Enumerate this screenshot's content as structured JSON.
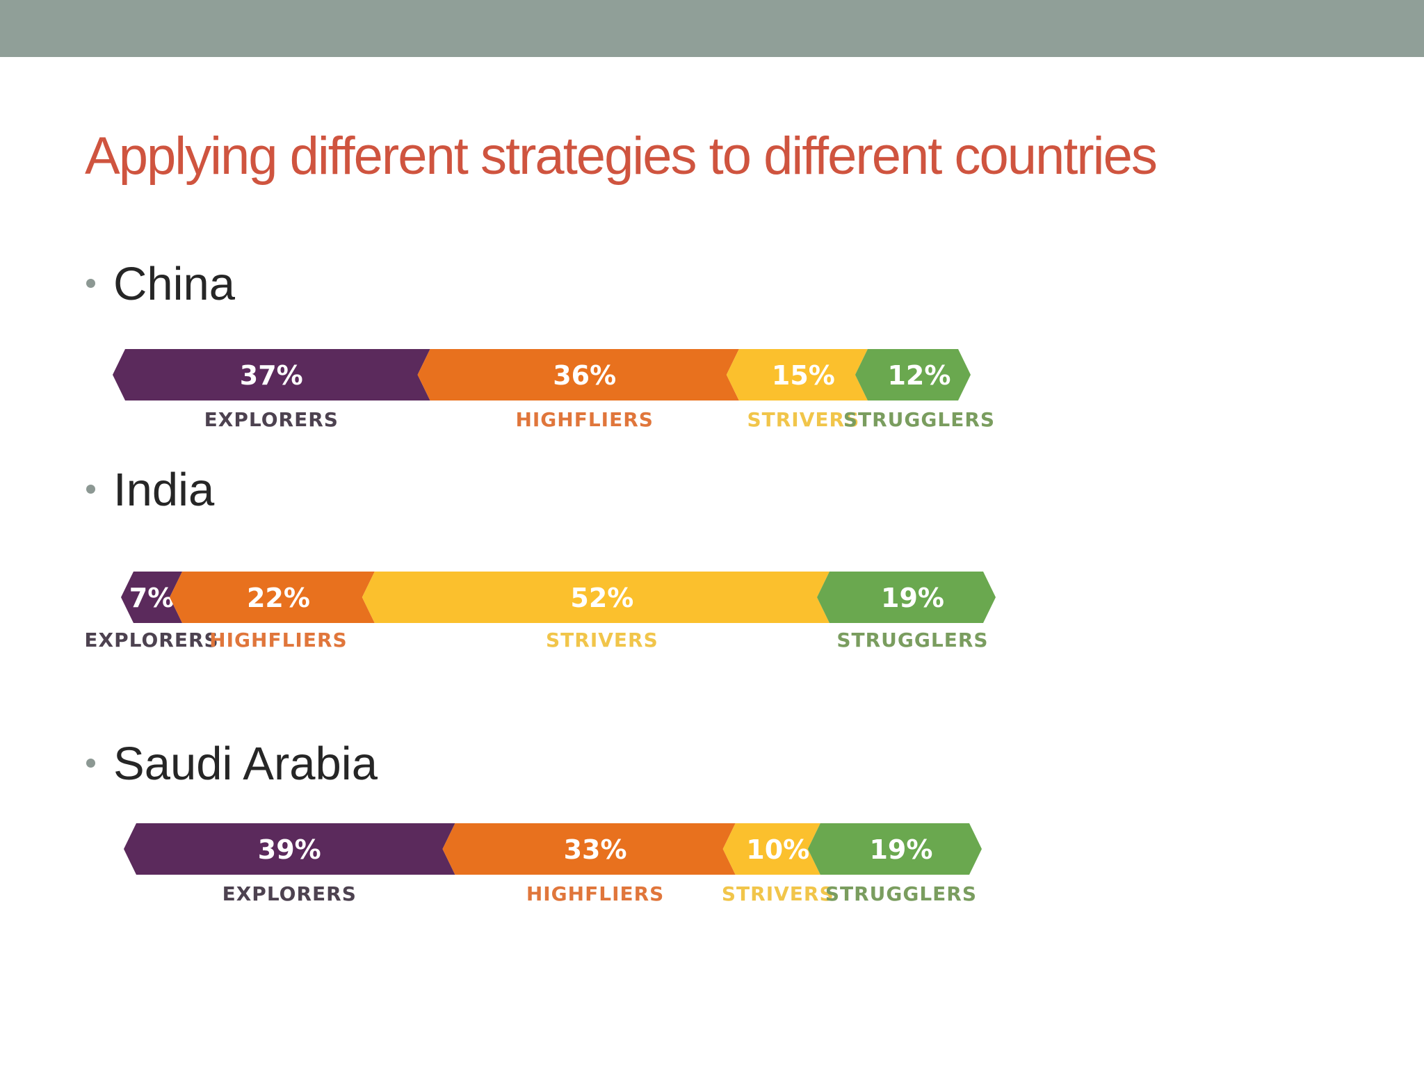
{
  "slide": {
    "title": "Applying different strategies to different countries"
  },
  "chart_data": [
    {
      "type": "bar",
      "orientation": "horizontal-stacked",
      "title": "China",
      "unit": "%",
      "categories": [
        "EXPLORERS",
        "HIGHFLIERS",
        "STRIVERS",
        "STRUGGLERS"
      ],
      "values": [
        37,
        36,
        15,
        12
      ],
      "labels": [
        "37%",
        "36%",
        "15%",
        "12%"
      ],
      "colors": [
        "#5b2a5c",
        "#e8711e",
        "#fbc02d",
        "#6aa84f"
      ],
      "label_colors": [
        "#4d4250",
        "#e0763b",
        "#f1c54a",
        "#7a9d5f"
      ]
    },
    {
      "type": "bar",
      "orientation": "horizontal-stacked",
      "title": "India",
      "unit": "%",
      "categories": [
        "EXPLORERS",
        "HIGHFLIERS",
        "STRIVERS",
        "STRUGGLERS"
      ],
      "values": [
        7,
        22,
        52,
        19
      ],
      "labels": [
        "7%",
        "22%",
        "52%",
        "19%"
      ],
      "colors": [
        "#5b2a5c",
        "#e8711e",
        "#fbc02d",
        "#6aa84f"
      ],
      "label_colors": [
        "#4d4250",
        "#e0763b",
        "#f1c54a",
        "#7a9d5f"
      ]
    },
    {
      "type": "bar",
      "orientation": "horizontal-stacked",
      "title": "Saudi Arabia",
      "unit": "%",
      "categories": [
        "EXPLORERS",
        "HIGHFLIERS",
        "STRIVERS",
        "STRUGGLERS"
      ],
      "values": [
        39,
        33,
        10,
        19
      ],
      "labels": [
        "39%",
        "33%",
        "10%",
        "19%"
      ],
      "colors": [
        "#5b2a5c",
        "#e8711e",
        "#fbc02d",
        "#6aa84f"
      ],
      "label_colors": [
        "#4d4250",
        "#e0763b",
        "#f1c54a",
        "#7a9d5f"
      ]
    }
  ]
}
